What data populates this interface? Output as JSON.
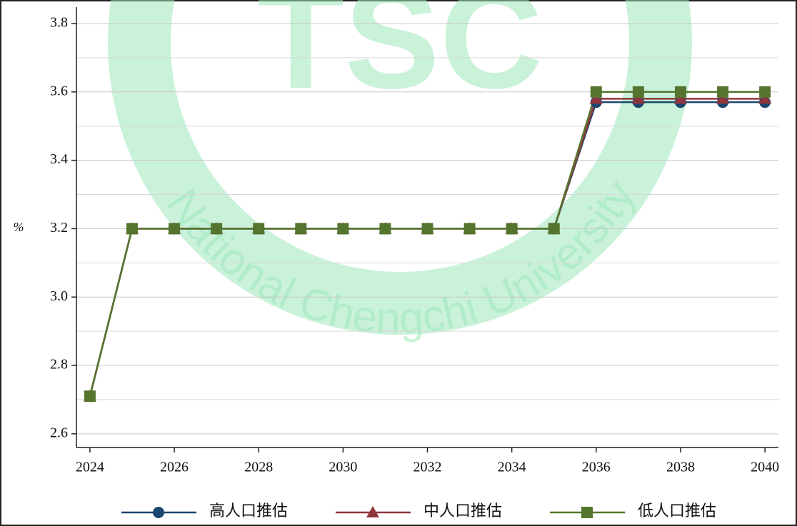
{
  "chart_data": {
    "type": "line",
    "watermark": {
      "logo": "TSC",
      "text": "National Chengchi University"
    },
    "y_label": "%",
    "x": [
      2024,
      2025,
      2026,
      2027,
      2028,
      2029,
      2030,
      2031,
      2032,
      2033,
      2034,
      2035,
      2036,
      2037,
      2038,
      2039,
      2040
    ],
    "xlim": [
      2023.68,
      2040.32
    ],
    "xticks": [
      2024,
      2026,
      2028,
      2030,
      2032,
      2034,
      2036,
      2038,
      2040
    ],
    "ylim": [
      2.56,
      3.848
    ],
    "yticks": [
      2.6,
      2.8,
      {
        "value": 3,
        "label": "3.0"
      },
      3.2,
      3.4,
      3.6,
      3.8
    ],
    "minor_yticks": [
      2.7,
      2.9,
      3.1,
      3.3,
      3.5,
      3.7
    ],
    "grid": true,
    "legend": "bottom",
    "series": [
      {
        "name": "高人口推估",
        "color": "#1a476f",
        "marker": "circle",
        "values": [
          2.71,
          3.2,
          3.2,
          3.2,
          3.2,
          3.2,
          3.2,
          3.2,
          3.2,
          3.2,
          3.2,
          3.2,
          3.57,
          3.57,
          3.57,
          3.57,
          3.57
        ]
      },
      {
        "name": "中人口推估",
        "color": "#90353b",
        "marker": "triangle",
        "values": [
          2.71,
          3.2,
          3.2,
          3.2,
          3.2,
          3.2,
          3.2,
          3.2,
          3.2,
          3.2,
          3.2,
          3.2,
          3.58,
          3.58,
          3.58,
          3.58,
          3.58
        ]
      },
      {
        "name": "低人口推估",
        "color": "#55752f",
        "marker": "square",
        "values": [
          2.71,
          3.2,
          3.2,
          3.2,
          3.2,
          3.2,
          3.2,
          3.2,
          3.2,
          3.2,
          3.2,
          3.2,
          3.6,
          3.6,
          3.6,
          3.6,
          3.6
        ]
      }
    ]
  }
}
